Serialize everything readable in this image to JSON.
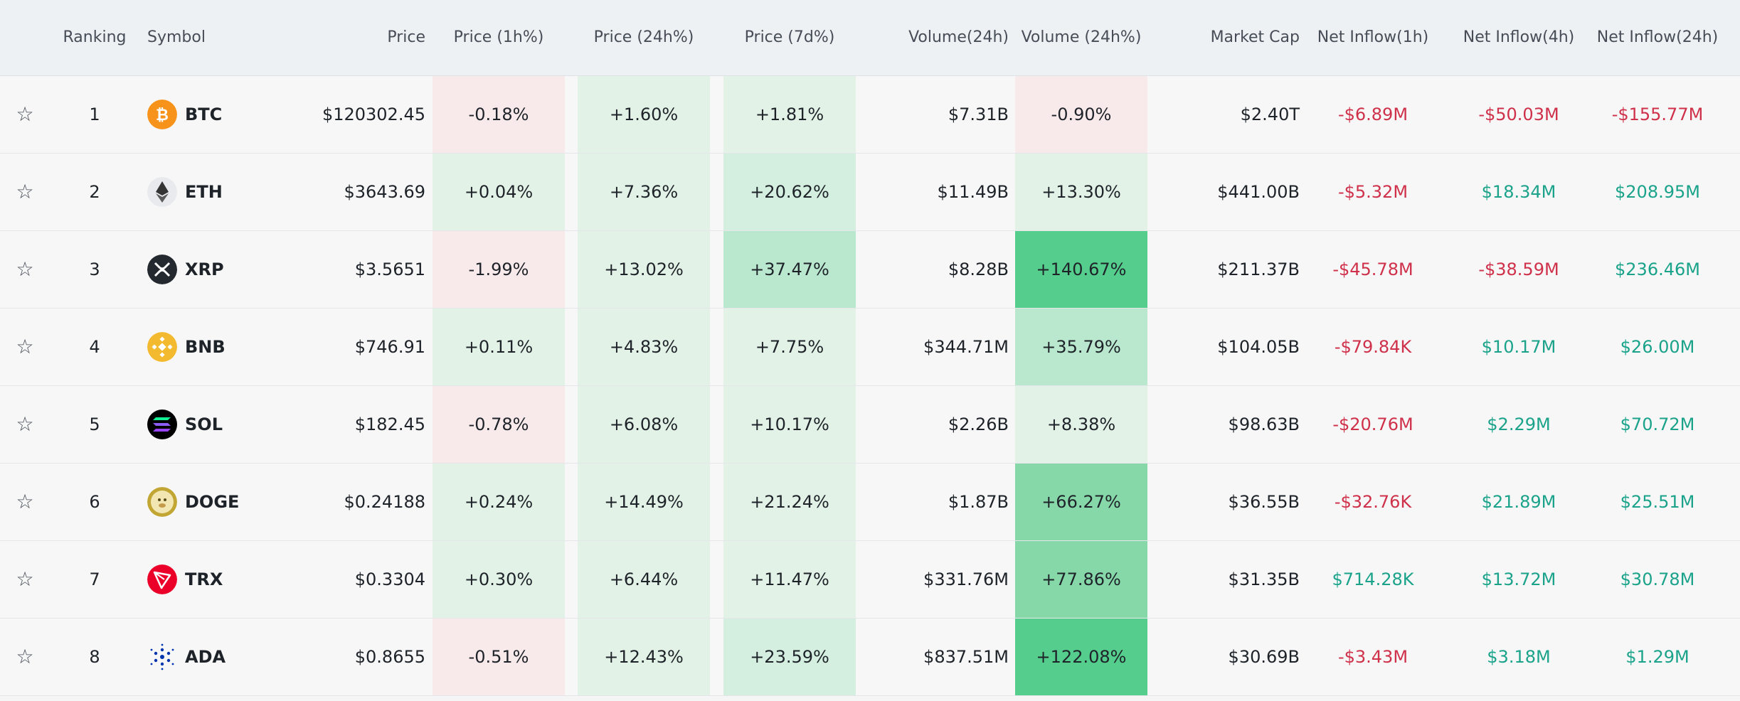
{
  "headers": {
    "ranking": "Ranking",
    "symbol": "Symbol",
    "price": "Price",
    "price_1h": "Price (1h%)",
    "price_24h": "Price (24h%)",
    "price_7d": "Price (7d%)",
    "volume_24h": "Volume(24h)",
    "volume_24h_pct": "Volume (24h%)",
    "market_cap": "Market Cap",
    "inflow_1h": "Net Inflow(1h)",
    "inflow_4h": "Net Inflow(4h)",
    "inflow_24h": "Net Inflow(24h)"
  },
  "colors": {
    "negative_text": "#cf304a",
    "positive_text": "#1aa38a",
    "negative_bg": "#f8e9ea",
    "positive_bg_light": "#e6f3ea",
    "positive_bg_mid": "#c7ecd7",
    "positive_bg_strong": "#55cd8c"
  },
  "rows": [
    {
      "rank": "1",
      "symbol": "BTC",
      "icon": "bitcoin-icon",
      "price": "$120302.45",
      "p1h": "-0.18%",
      "p24h": "+1.60%",
      "p7d": "+1.81%",
      "vol": "$7.31B",
      "vol_pct": "-0.90%",
      "mcap": "$2.40T",
      "in1h": "-$6.89M",
      "in4h": "-$50.03M",
      "in24h": "-$155.77M"
    },
    {
      "rank": "2",
      "symbol": "ETH",
      "icon": "ethereum-icon",
      "price": "$3643.69",
      "p1h": "+0.04%",
      "p24h": "+7.36%",
      "p7d": "+20.62%",
      "vol": "$11.49B",
      "vol_pct": "+13.30%",
      "mcap": "$441.00B",
      "in1h": "-$5.32M",
      "in4h": "$18.34M",
      "in24h": "$208.95M"
    },
    {
      "rank": "3",
      "symbol": "XRP",
      "icon": "xrp-icon",
      "price": "$3.5651",
      "p1h": "-1.99%",
      "p24h": "+13.02%",
      "p7d": "+37.47%",
      "vol": "$8.28B",
      "vol_pct": "+140.67%",
      "mcap": "$211.37B",
      "in1h": "-$45.78M",
      "in4h": "-$38.59M",
      "in24h": "$236.46M"
    },
    {
      "rank": "4",
      "symbol": "BNB",
      "icon": "bnb-icon",
      "price": "$746.91",
      "p1h": "+0.11%",
      "p24h": "+4.83%",
      "p7d": "+7.75%",
      "vol": "$344.71M",
      "vol_pct": "+35.79%",
      "mcap": "$104.05B",
      "in1h": "-$79.84K",
      "in4h": "$10.17M",
      "in24h": "$26.00M"
    },
    {
      "rank": "5",
      "symbol": "SOL",
      "icon": "solana-icon",
      "price": "$182.45",
      "p1h": "-0.78%",
      "p24h": "+6.08%",
      "p7d": "+10.17%",
      "vol": "$2.26B",
      "vol_pct": "+8.38%",
      "mcap": "$98.63B",
      "in1h": "-$20.76M",
      "in4h": "$2.29M",
      "in24h": "$70.72M"
    },
    {
      "rank": "6",
      "symbol": "DOGE",
      "icon": "dogecoin-icon",
      "price": "$0.24188",
      "p1h": "+0.24%",
      "p24h": "+14.49%",
      "p7d": "+21.24%",
      "vol": "$1.87B",
      "vol_pct": "+66.27%",
      "mcap": "$36.55B",
      "in1h": "-$32.76K",
      "in4h": "$21.89M",
      "in24h": "$25.51M"
    },
    {
      "rank": "7",
      "symbol": "TRX",
      "icon": "tron-icon",
      "price": "$0.3304",
      "p1h": "+0.30%",
      "p24h": "+6.44%",
      "p7d": "+11.47%",
      "vol": "$331.76M",
      "vol_pct": "+77.86%",
      "mcap": "$31.35B",
      "in1h": "$714.28K",
      "in4h": "$13.72M",
      "in24h": "$30.78M"
    },
    {
      "rank": "8",
      "symbol": "ADA",
      "icon": "cardano-icon",
      "price": "$0.8655",
      "p1h": "-0.51%",
      "p24h": "+12.43%",
      "p7d": "+23.59%",
      "vol": "$837.51M",
      "vol_pct": "+122.08%",
      "mcap": "$30.69B",
      "in1h": "-$3.43M",
      "in4h": "$3.18M",
      "in24h": "$1.29M"
    }
  ]
}
